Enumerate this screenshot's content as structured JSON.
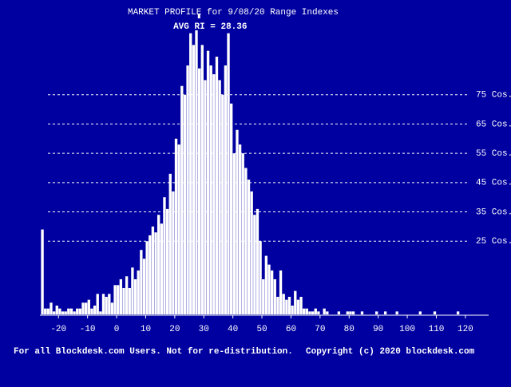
{
  "chart_data": {
    "type": "histogram",
    "title": "MARKET PROFILE for 9/08/20 Range Indexes",
    "annotation": {
      "text": "AVG RI = 28.36",
      "x": 28.36
    },
    "footer": [
      "For all Blockdesk.com Users. Not for re-distribution.",
      "Copyright (c) 2020 blockdesk.com"
    ],
    "color": "#ffffff",
    "bins": [
      -26,
      -25,
      -24,
      -23,
      -22,
      -21,
      -20,
      -19,
      -18,
      -17,
      -16,
      -15,
      -14,
      -13,
      -12,
      -11,
      -10,
      -9,
      -8,
      -7,
      -6,
      -5,
      -4,
      -3,
      -2,
      -1,
      0,
      1,
      2,
      3,
      4,
      5,
      6,
      7,
      8,
      9,
      10,
      11,
      12,
      13,
      14,
      15,
      16,
      17,
      18,
      19,
      20,
      21,
      22,
      23,
      24,
      25,
      26,
      27,
      28,
      29,
      30,
      31,
      32,
      33,
      34,
      35,
      36,
      37,
      38,
      39,
      40,
      41,
      42,
      43,
      44,
      45,
      46,
      47,
      48,
      49,
      50,
      51,
      52,
      53,
      54,
      55,
      56,
      57,
      58,
      59,
      60,
      61,
      62,
      63,
      64,
      65,
      66,
      67,
      68,
      69,
      70,
      71,
      72,
      73,
      74,
      75,
      76,
      77,
      78,
      79,
      80,
      81,
      82,
      83,
      84,
      85,
      86,
      87,
      88,
      89,
      90,
      91,
      92,
      93,
      94,
      95,
      96,
      97,
      98,
      99,
      100,
      101,
      102,
      103,
      104,
      105,
      106,
      107,
      108,
      109,
      110,
      111,
      112,
      113,
      114,
      115,
      116,
      117,
      118
    ],
    "values": [
      29,
      2,
      2,
      4,
      1,
      3,
      2,
      1,
      1,
      2,
      2,
      1,
      2,
      2,
      4,
      4,
      5,
      2,
      3,
      7,
      1,
      7,
      6,
      7,
      4,
      10,
      10,
      12,
      9,
      13,
      9,
      16,
      12,
      15,
      22,
      19,
      25,
      27,
      30,
      28,
      34,
      31,
      40,
      36,
      48,
      42,
      60,
      58,
      78,
      75,
      85,
      96,
      92,
      97,
      84,
      92,
      80,
      90,
      85,
      82,
      88,
      80,
      75,
      85,
      96,
      72,
      55,
      63,
      58,
      55,
      50,
      46,
      42,
      34,
      36,
      25,
      12,
      20,
      17,
      15,
      12,
      6,
      15,
      7,
      5,
      6,
      3,
      8,
      5,
      6,
      2,
      2,
      1,
      1,
      2,
      1,
      0,
      2,
      1,
      0,
      0,
      0,
      1,
      0,
      0,
      1,
      1,
      1,
      0,
      0,
      1,
      0,
      0,
      0,
      0,
      1,
      0,
      0,
      1,
      0,
      0,
      0,
      1,
      0,
      0,
      0,
      0,
      0,
      0,
      0,
      1,
      0,
      0,
      0,
      0,
      1,
      0,
      0,
      0,
      0,
      0,
      0,
      0,
      1
    ],
    "xlim": [
      -26,
      128
    ],
    "xticks": [
      -20,
      -10,
      0,
      10,
      20,
      30,
      40,
      50,
      60,
      70,
      80,
      90,
      100,
      110,
      120
    ],
    "ylim": [
      0,
      101
    ],
    "yticks": [
      {
        "value": 25,
        "label": "25 Cos."
      },
      {
        "value": 35,
        "label": "35 Cos."
      },
      {
        "value": 45,
        "label": "45 Cos."
      },
      {
        "value": 55,
        "label": "55 Cos."
      },
      {
        "value": 65,
        "label": "65 Cos."
      },
      {
        "value": 75,
        "label": "75 Cos."
      }
    ],
    "grid": true
  }
}
